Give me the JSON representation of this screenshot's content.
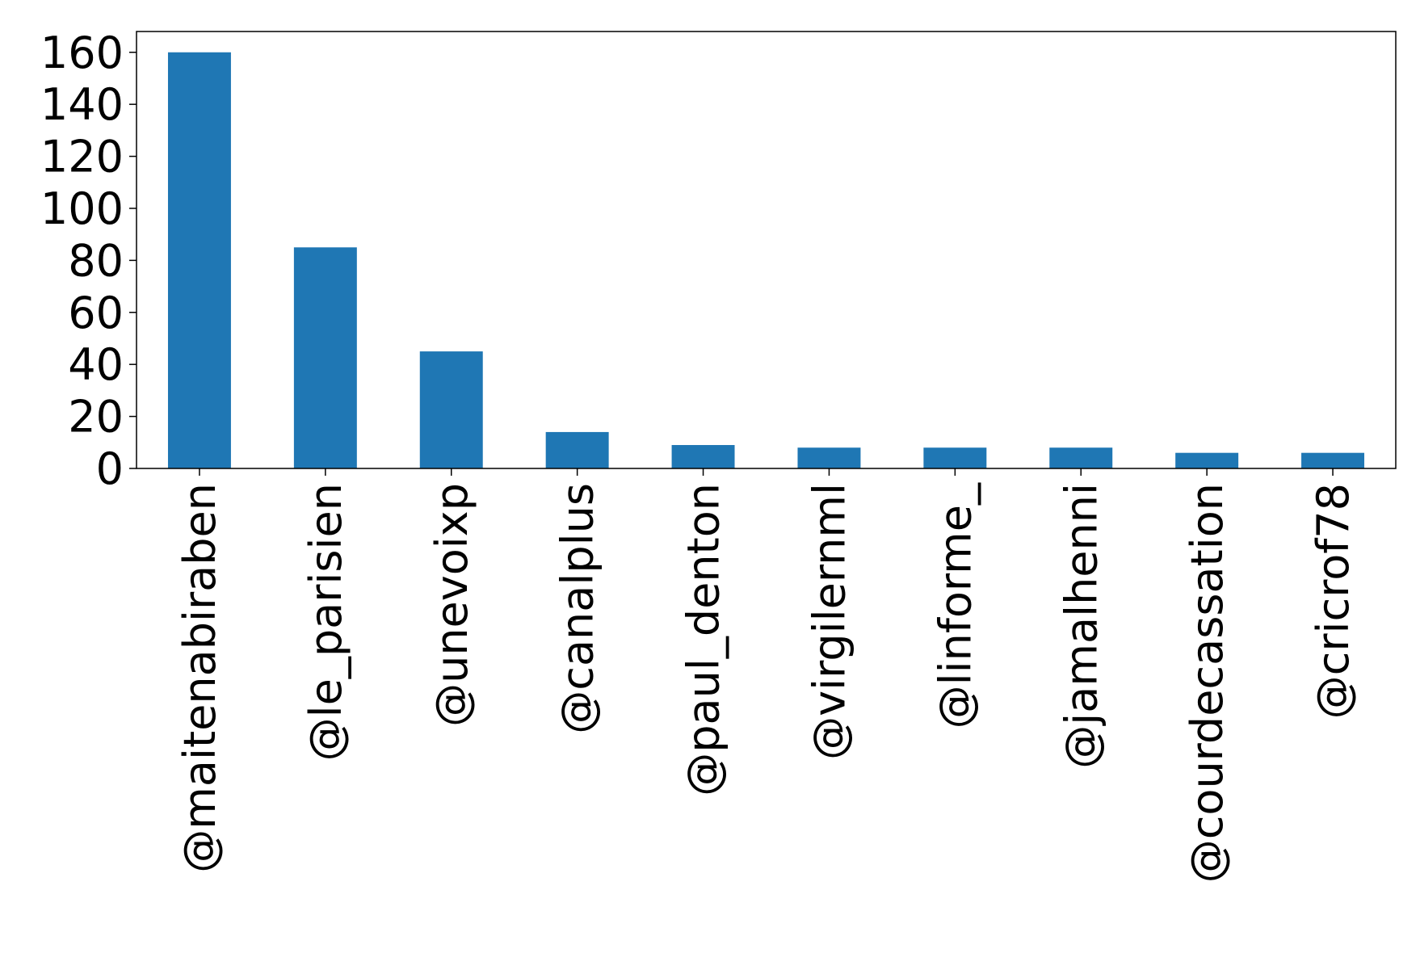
{
  "chart_data": {
    "type": "bar",
    "categories": [
      "@maitenabiraben",
      "@le_parisien",
      "@unevoixp",
      "@canalplus",
      "@paul_denton",
      "@virgilernml",
      "@linforme_",
      "@jamalhenni",
      "@courdecassation",
      "@cricrof78"
    ],
    "values": [
      160,
      85,
      45,
      14,
      9,
      8,
      8,
      8,
      6,
      6
    ],
    "color": "#1f77b4",
    "ylim": [
      0,
      168
    ],
    "yticks": [
      0,
      20,
      40,
      60,
      80,
      100,
      120,
      140,
      160
    ],
    "grid": false
  }
}
